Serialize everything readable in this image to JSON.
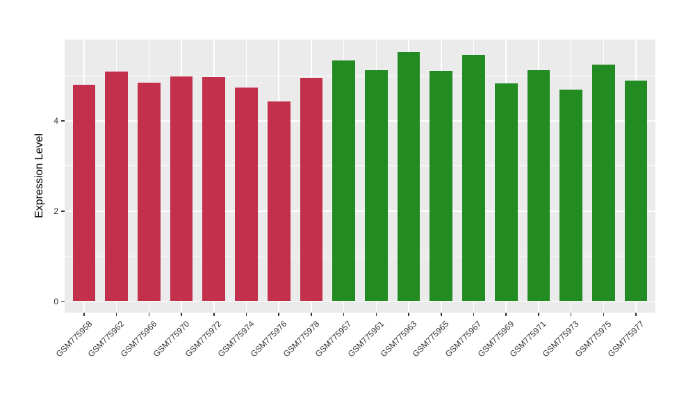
{
  "figure": {
    "background_color": "#FFFFFF",
    "panel_background_color": "#EBEBEB",
    "gridline_color": "#FFFFFF",
    "axis_text_color": "#303030"
  },
  "chart_data": {
    "type": "bar",
    "title": "",
    "xlabel": "",
    "ylabel": "Expression Level",
    "ylim": [
      0,
      5.8
    ],
    "y_major_ticks": [
      0,
      2,
      4
    ],
    "y_major_tick_labels": [
      "0",
      "2",
      "4"
    ],
    "y_minor_gridlines": [
      1,
      3,
      5
    ],
    "grid": true,
    "legend_position": "none",
    "group_colors": {
      "red": "#C3304B",
      "green": "#228B22"
    },
    "categories": [
      "GSM775958",
      "GSM775962",
      "GSM775966",
      "GSM775970",
      "GSM775972",
      "GSM775974",
      "GSM775976",
      "GSM775978",
      "GSM775957",
      "GSM775961",
      "GSM775963",
      "GSM775965",
      "GSM775967",
      "GSM775969",
      "GSM775971",
      "GSM775973",
      "GSM775975",
      "GSM775977"
    ],
    "values": [
      4.81,
      5.09,
      4.85,
      4.99,
      4.98,
      4.74,
      4.43,
      4.96,
      5.35,
      5.13,
      5.53,
      5.11,
      5.47,
      4.83,
      5.13,
      4.7,
      5.25,
      4.89
    ],
    "bars": [
      {
        "label": "GSM775958",
        "value": 4.81,
        "group": "red"
      },
      {
        "label": "GSM775962",
        "value": 5.09,
        "group": "red"
      },
      {
        "label": "GSM775966",
        "value": 4.85,
        "group": "red"
      },
      {
        "label": "GSM775970",
        "value": 4.99,
        "group": "red"
      },
      {
        "label": "GSM775972",
        "value": 4.98,
        "group": "red"
      },
      {
        "label": "GSM775974",
        "value": 4.74,
        "group": "red"
      },
      {
        "label": "GSM775976",
        "value": 4.43,
        "group": "red"
      },
      {
        "label": "GSM775978",
        "value": 4.96,
        "group": "red"
      },
      {
        "label": "GSM775957",
        "value": 5.35,
        "group": "green"
      },
      {
        "label": "GSM775961",
        "value": 5.13,
        "group": "green"
      },
      {
        "label": "GSM775963",
        "value": 5.53,
        "group": "green"
      },
      {
        "label": "GSM775965",
        "value": 5.11,
        "group": "green"
      },
      {
        "label": "GSM775967",
        "value": 5.47,
        "group": "green"
      },
      {
        "label": "GSM775969",
        "value": 4.83,
        "group": "green"
      },
      {
        "label": "GSM775971",
        "value": 5.13,
        "group": "green"
      },
      {
        "label": "GSM775973",
        "value": 4.7,
        "group": "green"
      },
      {
        "label": "GSM775975",
        "value": 5.25,
        "group": "green"
      },
      {
        "label": "GSM775977",
        "value": 4.89,
        "group": "green"
      }
    ]
  }
}
